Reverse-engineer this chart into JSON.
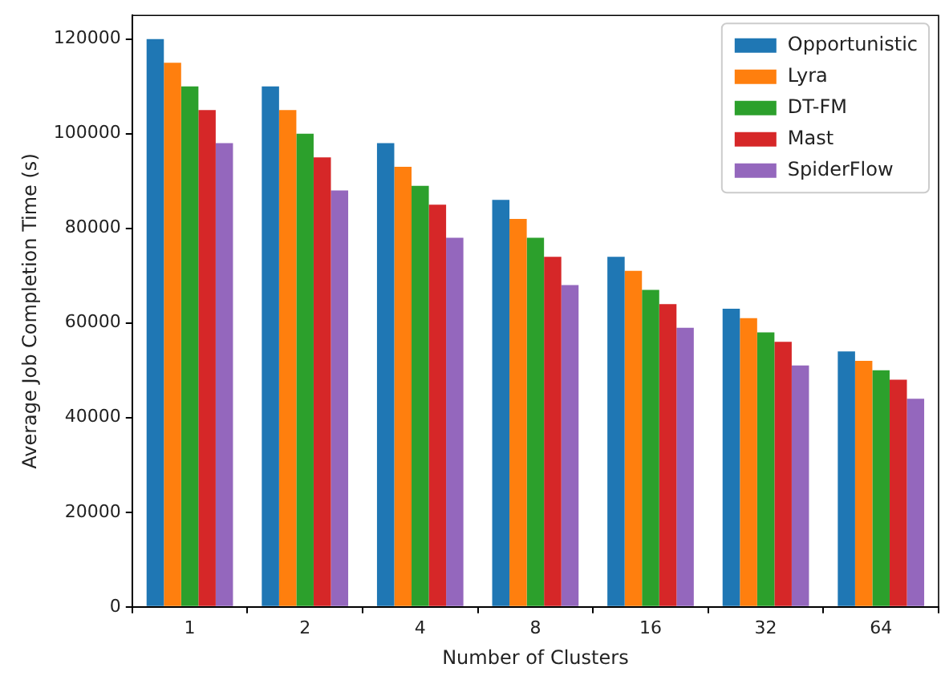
{
  "chart_data": {
    "type": "bar",
    "xlabel": "Number of Clusters",
    "ylabel": "Average Job Completion Time (s)",
    "categories": [
      "1",
      "2",
      "4",
      "8",
      "16",
      "32",
      "64"
    ],
    "series": [
      {
        "name": "Opportunistic",
        "color": "#1f77b4",
        "values": [
          120000,
          110000,
          98000,
          86000,
          74000,
          63000,
          54000
        ]
      },
      {
        "name": "Lyra",
        "color": "#ff7f0e",
        "values": [
          115000,
          105000,
          93000,
          82000,
          71000,
          61000,
          52000
        ]
      },
      {
        "name": "DT-FM",
        "color": "#2ca02c",
        "values": [
          110000,
          100000,
          89000,
          78000,
          67000,
          58000,
          50000
        ]
      },
      {
        "name": "Mast",
        "color": "#d62728",
        "values": [
          105000,
          95000,
          85000,
          74000,
          64000,
          56000,
          48000
        ]
      },
      {
        "name": "SpiderFlow",
        "color": "#9467bd",
        "values": [
          98000,
          88000,
          78000,
          68000,
          59000,
          51000,
          44000
        ]
      }
    ],
    "ylim": [
      0,
      125000
    ],
    "yticks": [
      0,
      20000,
      40000,
      60000,
      80000,
      100000,
      120000
    ],
    "grid": false,
    "legend": "top right"
  }
}
